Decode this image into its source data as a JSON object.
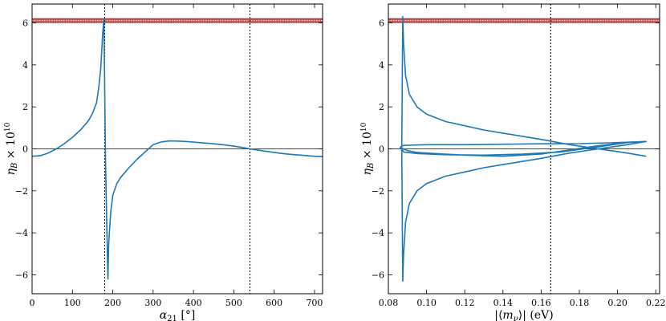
{
  "chart_data": [
    {
      "type": "line",
      "xlabel": "α21 [°]",
      "ylabel": "ηB × 10^10",
      "xlim": [
        0,
        720
      ],
      "ylim": [
        -6.9,
        6.9
      ],
      "xticks": [
        0,
        100,
        200,
        300,
        400,
        500,
        600,
        700
      ],
      "xtick_labels": [
        "0",
        "100",
        "200",
        "300",
        "400",
        "500",
        "600",
        "700"
      ],
      "yticks": [
        -6,
        -4,
        -2,
        0,
        2,
        4,
        6
      ],
      "ytick_labels": [
        "−6",
        "−4",
        "−2",
        "0",
        "2",
        "4",
        "6"
      ],
      "grid": false,
      "hline": 0,
      "vlines": [
        180,
        540
      ],
      "band": {
        "y0": 6.01,
        "y1": 6.21,
        "color": "#b23a3a"
      },
      "series": [
        {
          "color": "#1f77b4",
          "x": [
            0,
            20,
            40,
            60,
            80,
            100,
            120,
            140,
            150,
            160,
            165,
            170,
            175,
            178,
            182,
            185,
            188,
            190,
            195,
            200,
            210,
            220,
            240,
            260,
            280,
            300,
            320,
            340,
            360,
            380,
            400,
            420,
            440,
            460,
            480,
            500,
            520,
            540,
            560,
            580,
            600,
            620,
            640,
            660,
            680,
            700,
            720
          ],
          "y": [
            -0.35,
            -0.33,
            -0.2,
            0.0,
            0.25,
            0.55,
            0.9,
            1.35,
            1.7,
            2.2,
            2.9,
            3.8,
            5.5,
            6.2,
            -0.5,
            -3.5,
            -6.2,
            -4.5,
            -3.0,
            -2.2,
            -1.65,
            -1.35,
            -0.9,
            -0.5,
            -0.15,
            0.2,
            0.33,
            0.38,
            0.37,
            0.35,
            0.32,
            0.29,
            0.26,
            0.22,
            0.18,
            0.13,
            0.07,
            0.0,
            -0.06,
            -0.12,
            -0.17,
            -0.22,
            -0.26,
            -0.29,
            -0.32,
            -0.35,
            -0.37
          ]
        }
      ]
    },
    {
      "type": "line",
      "xlabel": "|⟨mν⟩| (eV)",
      "ylabel": "ηB × 10^10",
      "xlim": [
        0.08,
        0.222
      ],
      "ylim": [
        -6.9,
        6.9
      ],
      "xticks": [
        0.08,
        0.1,
        0.12,
        0.14,
        0.16,
        0.18,
        0.2,
        0.22
      ],
      "xtick_labels": [
        "0.08",
        "0.10",
        "0.12",
        "0.14",
        "0.16",
        "0.18",
        "0.20",
        "0.22"
      ],
      "yticks": [
        -6,
        -4,
        -2,
        0,
        2,
        4,
        6
      ],
      "ytick_labels": [
        "−6",
        "−4",
        "−2",
        "0",
        "2",
        "4",
        "6"
      ],
      "grid": false,
      "hline": 0,
      "vlines": [
        0.165
      ],
      "band": {
        "y0": 6.01,
        "y1": 6.21,
        "color": "#b23a3a"
      },
      "series": [
        {
          "color": "#1f77b4",
          "x": [
            0.215,
            0.205,
            0.19,
            0.175,
            0.16,
            0.15,
            0.14,
            0.13,
            0.12,
            0.11,
            0.1,
            0.095,
            0.092,
            0.09,
            0.0885,
            0.0877,
            0.087,
            0.0865,
            0.086,
            0.0865,
            0.0875,
            0.089,
            0.092,
            0.1,
            0.12,
            0.14,
            0.16,
            0.18,
            0.2,
            0.215,
            0.205,
            0.19,
            0.17,
            0.15,
            0.13,
            0.11,
            0.095,
            0.088,
            0.087,
            0.0875,
            0.088,
            0.089,
            0.091,
            0.095,
            0.1,
            0.11,
            0.12,
            0.13,
            0.14,
            0.15,
            0.16,
            0.175,
            0.19,
            0.205,
            0.215
          ],
          "y": [
            0.35,
            0.3,
            0.15,
            -0.05,
            -0.25,
            -0.3,
            -0.35,
            -0.33,
            -0.3,
            -0.25,
            -0.2,
            -0.17,
            -0.12,
            -0.08,
            -0.03,
            0.0,
            0.02,
            0.0,
            0.0,
            0.1,
            0.15,
            0.17,
            0.18,
            0.2,
            0.2,
            0.22,
            0.24,
            0.25,
            0.3,
            0.35,
            0.3,
            0.1,
            -0.15,
            -0.25,
            -0.3,
            -0.28,
            -0.22,
            -0.15,
            0.0,
            6.3,
            5.0,
            3.5,
            2.6,
            2.0,
            1.65,
            1.3,
            1.1,
            0.9,
            0.75,
            0.6,
            0.45,
            0.2,
            0.0,
            -0.2,
            -0.35
          ]
        },
        {
          "color": "#1f77b4",
          "x": [
            0.087,
            0.0875,
            0.088,
            0.089,
            0.091,
            0.095,
            0.1,
            0.11,
            0.12,
            0.13,
            0.14,
            0.15,
            0.16,
            0.175,
            0.19,
            0.205,
            0.215
          ],
          "y": [
            0.0,
            -6.3,
            -5.0,
            -3.5,
            -2.6,
            -2.0,
            -1.65,
            -1.3,
            -1.1,
            -0.9,
            -0.75,
            -0.6,
            -0.45,
            -0.2,
            0.0,
            0.2,
            0.35
          ]
        }
      ]
    }
  ]
}
